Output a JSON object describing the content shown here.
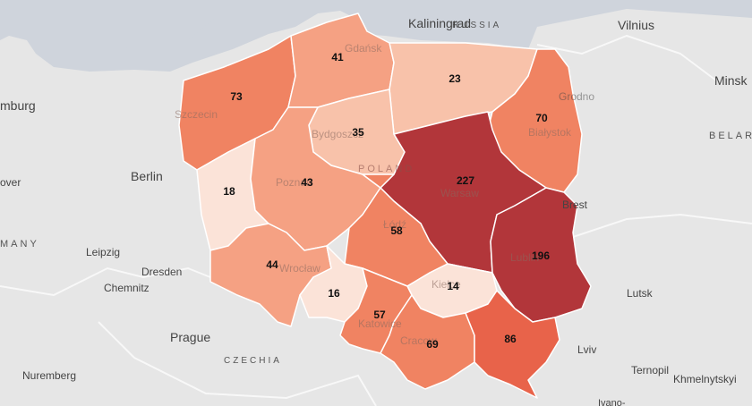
{
  "colors": {
    "land": "#e6e6e6",
    "water": "#cfd4dc",
    "border": "#ffffff",
    "scale": [
      "#fbe3d8",
      "#f8c2aa",
      "#f5a183",
      "#f08362",
      "#e8634a",
      "#b2363a"
    ]
  },
  "country_labels": {
    "germany": "MANY",
    "czechia": "CZECHIA",
    "belarus": "BELAR",
    "poland": "POLAND",
    "russia": "RUSSIA"
  },
  "cities": {
    "kaliningrad": "Kaliningrad",
    "vilnius": "Vilnius",
    "minsk": "Minsk",
    "hamburg": "mburg",
    "hanover": "over",
    "berlin": "Berlin",
    "leipzig": "Leipzig",
    "dresden": "Dresden",
    "chemnitz": "Chemnitz",
    "prague": "Prague",
    "nuremberg": "Nuremberg",
    "lutsk": "Lutsk",
    "lviv": "Lviv",
    "ternopil": "Ternopil",
    "khmelnytskyi": "Khmelnytskyi",
    "brest": "Brest",
    "grodno": "Grodno",
    "ivano": "Ivano-"
  },
  "regions": [
    {
      "id": "zachodniopomorskie",
      "value": "73",
      "label": "Szczecin",
      "level": 3
    },
    {
      "id": "pomorskie",
      "value": "41",
      "label": "Gdańsk",
      "level": 2
    },
    {
      "id": "warminsko-mazurskie",
      "value": "23",
      "label": "",
      "level": 1
    },
    {
      "id": "podlaskie",
      "value": "70",
      "label": "Białystok",
      "level": 3
    },
    {
      "id": "kujawsko-pomorskie",
      "value": "35",
      "label": "Bydgoszcz",
      "level": 1
    },
    {
      "id": "lubuskie",
      "value": "18",
      "label": "",
      "level": 0
    },
    {
      "id": "wielkopolskie",
      "value": "43",
      "label": "Poznań",
      "level": 2
    },
    {
      "id": "mazowieckie",
      "value": "227",
      "label": "Warsaw",
      "level": 5
    },
    {
      "id": "lodzkie",
      "value": "58",
      "label": "Łódź",
      "level": 3
    },
    {
      "id": "lubelskie",
      "value": "196",
      "label": "Lublin",
      "level": 5
    },
    {
      "id": "dolnoslaskie",
      "value": "44",
      "label": "Wrocław",
      "level": 2
    },
    {
      "id": "opolskie",
      "value": "16",
      "label": "",
      "level": 0
    },
    {
      "id": "swietokrzyskie",
      "value": "14",
      "label": "Kielce",
      "level": 0
    },
    {
      "id": "slaskie",
      "value": "57",
      "label": "Katowice",
      "level": 3
    },
    {
      "id": "malopolskie",
      "value": "69",
      "label": "Cracow",
      "level": 3
    },
    {
      "id": "podkarpackie",
      "value": "86",
      "label": "",
      "level": 4
    }
  ]
}
